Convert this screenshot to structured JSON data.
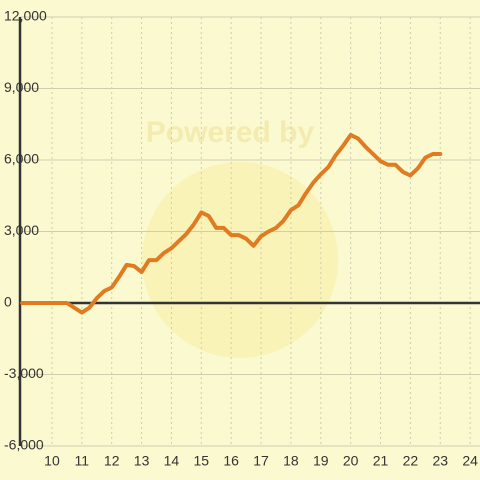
{
  "chart_data": {
    "type": "line",
    "watermark": "Powered by",
    "x": [
      9,
      10,
      10.5,
      11,
      11.25,
      11.5,
      11.75,
      12,
      12.25,
      12.5,
      12.75,
      13,
      13.25,
      13.5,
      13.75,
      14,
      14.25,
      14.5,
      14.75,
      15,
      15.25,
      15.5,
      15.75,
      16,
      16.25,
      16.5,
      16.75,
      17,
      17.25,
      17.5,
      17.75,
      18,
      18.25,
      18.5,
      18.75,
      19,
      19.25,
      19.5,
      19.75,
      20,
      20.25,
      20.5,
      20.75,
      21,
      21.25,
      21.5,
      21.75,
      22,
      22.25,
      22.5,
      22.75,
      23
    ],
    "series": [
      {
        "color": "#e07b22",
        "values": [
          0,
          0,
          0,
          -400,
          -200,
          200,
          500,
          650,
          1100,
          1600,
          1550,
          1300,
          1800,
          1800,
          2100,
          2300,
          2600,
          2900,
          3300,
          3800,
          3650,
          3150,
          3150,
          2850,
          2850,
          2700,
          2400,
          2800,
          3000,
          3150,
          3450,
          3900,
          4100,
          4600,
          5050,
          5400,
          5700,
          6200,
          6600,
          7050,
          6900,
          6550,
          6250,
          5950,
          5800,
          5800,
          5500,
          5350,
          5650,
          6100,
          6250,
          6250
        ]
      }
    ],
    "xlim": [
      8.93,
      24.33
    ],
    "xticks": [
      10,
      11,
      12,
      13,
      14,
      15,
      16,
      17,
      18,
      19,
      20,
      21,
      22,
      23,
      24
    ],
    "ylim": [
      -6000,
      12000
    ],
    "yticks": [
      {
        "value": -6000,
        "label": "-6,000"
      },
      {
        "value": -3000,
        "label": "-3,000"
      },
      0,
      {
        "value": 3000,
        "label": "3,000"
      },
      {
        "value": 6000,
        "label": "6,000"
      },
      {
        "value": 9000,
        "label": "9,000"
      },
      {
        "value": 12000,
        "label": "12,000"
      }
    ],
    "grid": true
  }
}
